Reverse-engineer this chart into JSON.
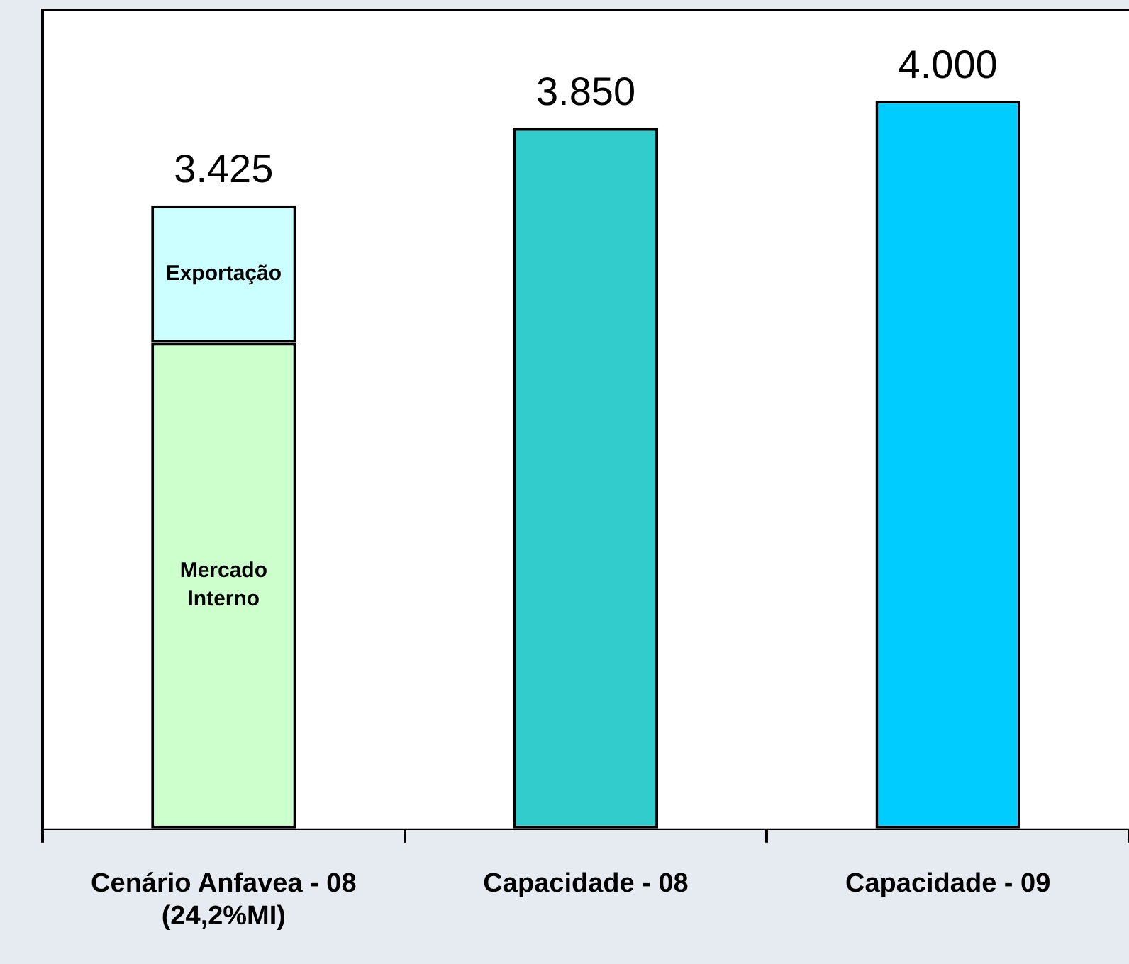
{
  "chart_data": {
    "type": "bar",
    "stacked": true,
    "categories": [
      "Cenário Anfavea - 08\n(24,2%MI)",
      "Capacidade - 08",
      "Capacidade - 09"
    ],
    "series": [
      {
        "name": "Mercado Interno",
        "color": "#ccffcc",
        "values": [
          2.67,
          null,
          null
        ]
      },
      {
        "name": "Exportação",
        "color": "#ccffff",
        "values": [
          0.755,
          null,
          null
        ]
      },
      {
        "colors": [
          "#ccffcc",
          "#33cccc",
          "#00ccff"
        ],
        "values": [
          null,
          3.85,
          4.0
        ],
        "value_labels": [
          null,
          "3.850",
          "4.000"
        ]
      }
    ],
    "totals": [
      "3.425",
      null,
      null
    ],
    "ylim": [
      0,
      4.5
    ],
    "tick_labels": "x",
    "legend": false
  }
}
